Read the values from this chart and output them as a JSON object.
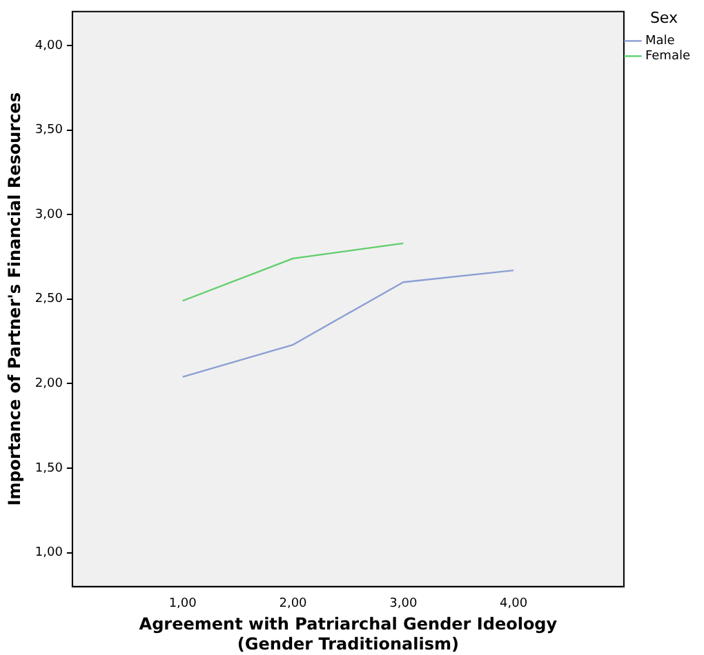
{
  "chart_data": {
    "type": "line",
    "xlabel": "Agreement with Patriarchal Gender Ideology\n(Gender Traditionalism)",
    "ylabel": "Importance of Partner's Financial Resources",
    "legend_title": "Sex",
    "legend": "right",
    "marker": "none",
    "grid": false,
    "xlim": [
      0,
      5
    ],
    "xticks": [
      {
        "value": 1,
        "label": "1,00"
      },
      {
        "value": 2,
        "label": "2,00"
      },
      {
        "value": 3,
        "label": "3,00"
      },
      {
        "value": 4,
        "label": "4,00"
      }
    ],
    "ylim": [
      0.8,
      4.2
    ],
    "yticks": [
      {
        "value": 1,
        "label": "1,00"
      },
      {
        "value": 1.5,
        "label": "1,50"
      },
      {
        "value": 2,
        "label": "2,00"
      },
      {
        "value": 2.5,
        "label": "2,50"
      },
      {
        "value": 3,
        "label": "3,00"
      },
      {
        "value": 3.5,
        "label": "3,50"
      },
      {
        "value": 4,
        "label": "4,00"
      }
    ],
    "series": [
      {
        "name": "Male",
        "color": "#8c9fd4",
        "x": [
          1,
          2,
          3,
          4
        ],
        "values": [
          2.04,
          2.23,
          2.6,
          2.67
        ]
      },
      {
        "name": "Female",
        "color": "#5fce6b",
        "x": [
          1,
          2,
          3
        ],
        "values": [
          2.49,
          2.74,
          2.83
        ]
      }
    ]
  }
}
